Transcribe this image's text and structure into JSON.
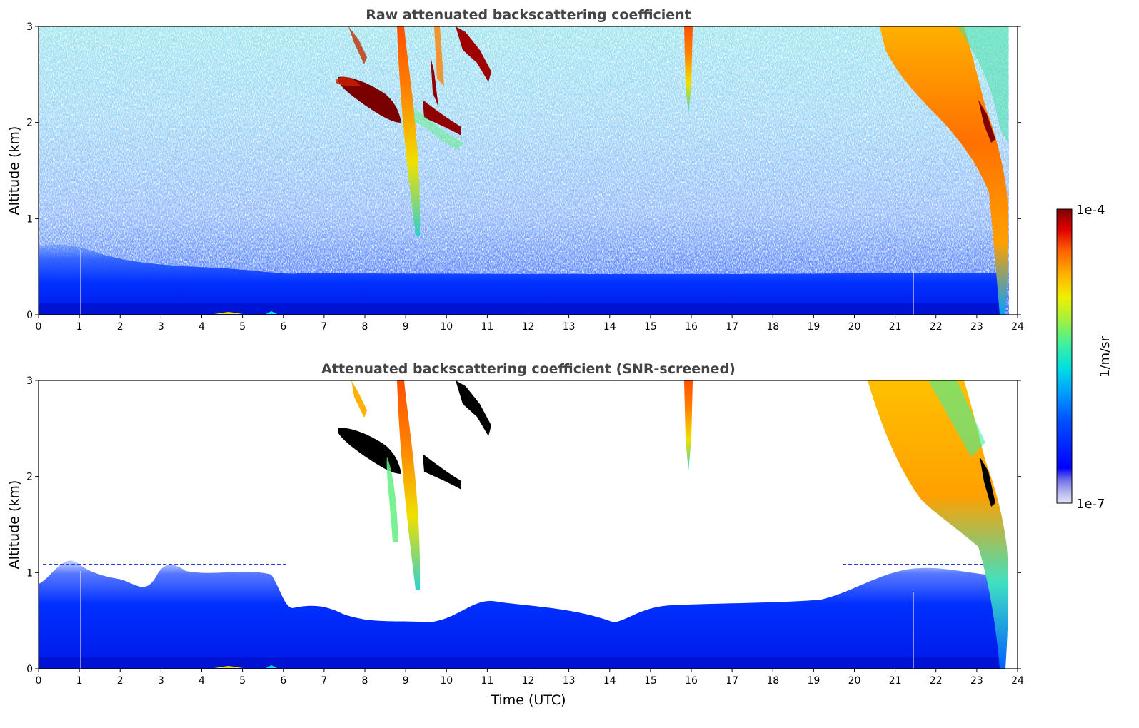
{
  "chart_data": [
    {
      "type": "heatmap",
      "title": "Raw attenuated backscattering coefficient",
      "xlabel": "",
      "ylabel": "Altitude (km)",
      "xlim": [
        0,
        24
      ],
      "ylim": [
        0,
        3
      ],
      "x_ticks": [
        "0",
        "1",
        "2",
        "3",
        "4",
        "5",
        "6",
        "7",
        "8",
        "9",
        "10",
        "11",
        "12",
        "13",
        "14",
        "15",
        "16",
        "17",
        "18",
        "19",
        "20",
        "21",
        "22",
        "23",
        "24"
      ],
      "y_ticks": [
        "0",
        "1",
        "2",
        "3"
      ],
      "features": [
        {
          "name": "boundary layer aerosol",
          "x": [
            0,
            23.6
          ],
          "y_top": 0.7
        },
        {
          "name": "cloud layer A",
          "x": [
            7.4,
            9.0
          ],
          "y": [
            2.5,
            2.0
          ]
        },
        {
          "name": "cloud layer B",
          "x": [
            9.6,
            10.4
          ],
          "y": [
            2.2,
            1.85
          ]
        },
        {
          "name": "virga column",
          "x": 9.2,
          "y": [
            0.8,
            3.0
          ]
        },
        {
          "name": "virga column",
          "x": 16.0,
          "y": [
            2.0,
            3.0
          ]
        },
        {
          "name": "cirrus/precipitation",
          "x": [
            20.6,
            23.8
          ],
          "y": [
            0,
            3.0
          ]
        }
      ]
    },
    {
      "type": "heatmap",
      "title": "Attenuated backscattering coefficient (SNR-screened)",
      "xlabel": "Time (UTC)",
      "ylabel": "Altitude (km)",
      "xlim": [
        0,
        24
      ],
      "ylim": [
        0,
        3
      ],
      "x_ticks": [
        "0",
        "1",
        "2",
        "3",
        "4",
        "5",
        "6",
        "7",
        "8",
        "9",
        "10",
        "11",
        "12",
        "13",
        "14",
        "15",
        "16",
        "17",
        "18",
        "19",
        "20",
        "21",
        "22",
        "23",
        "24"
      ],
      "y_ticks": [
        "0",
        "1",
        "2",
        "3"
      ]
    }
  ],
  "colorbar": {
    "label": "1/m/sr",
    "max_label": "1e-4",
    "min_label": "1e-7",
    "colors": [
      "#e6e6f8",
      "#b0b0f0",
      "#6e6ee8",
      "#0000ff",
      "#0050ff",
      "#00a0ff",
      "#00e0e0",
      "#40f0a0",
      "#a0f040",
      "#f0f000",
      "#ffb000",
      "#ff6000",
      "#e00000",
      "#800000"
    ]
  }
}
